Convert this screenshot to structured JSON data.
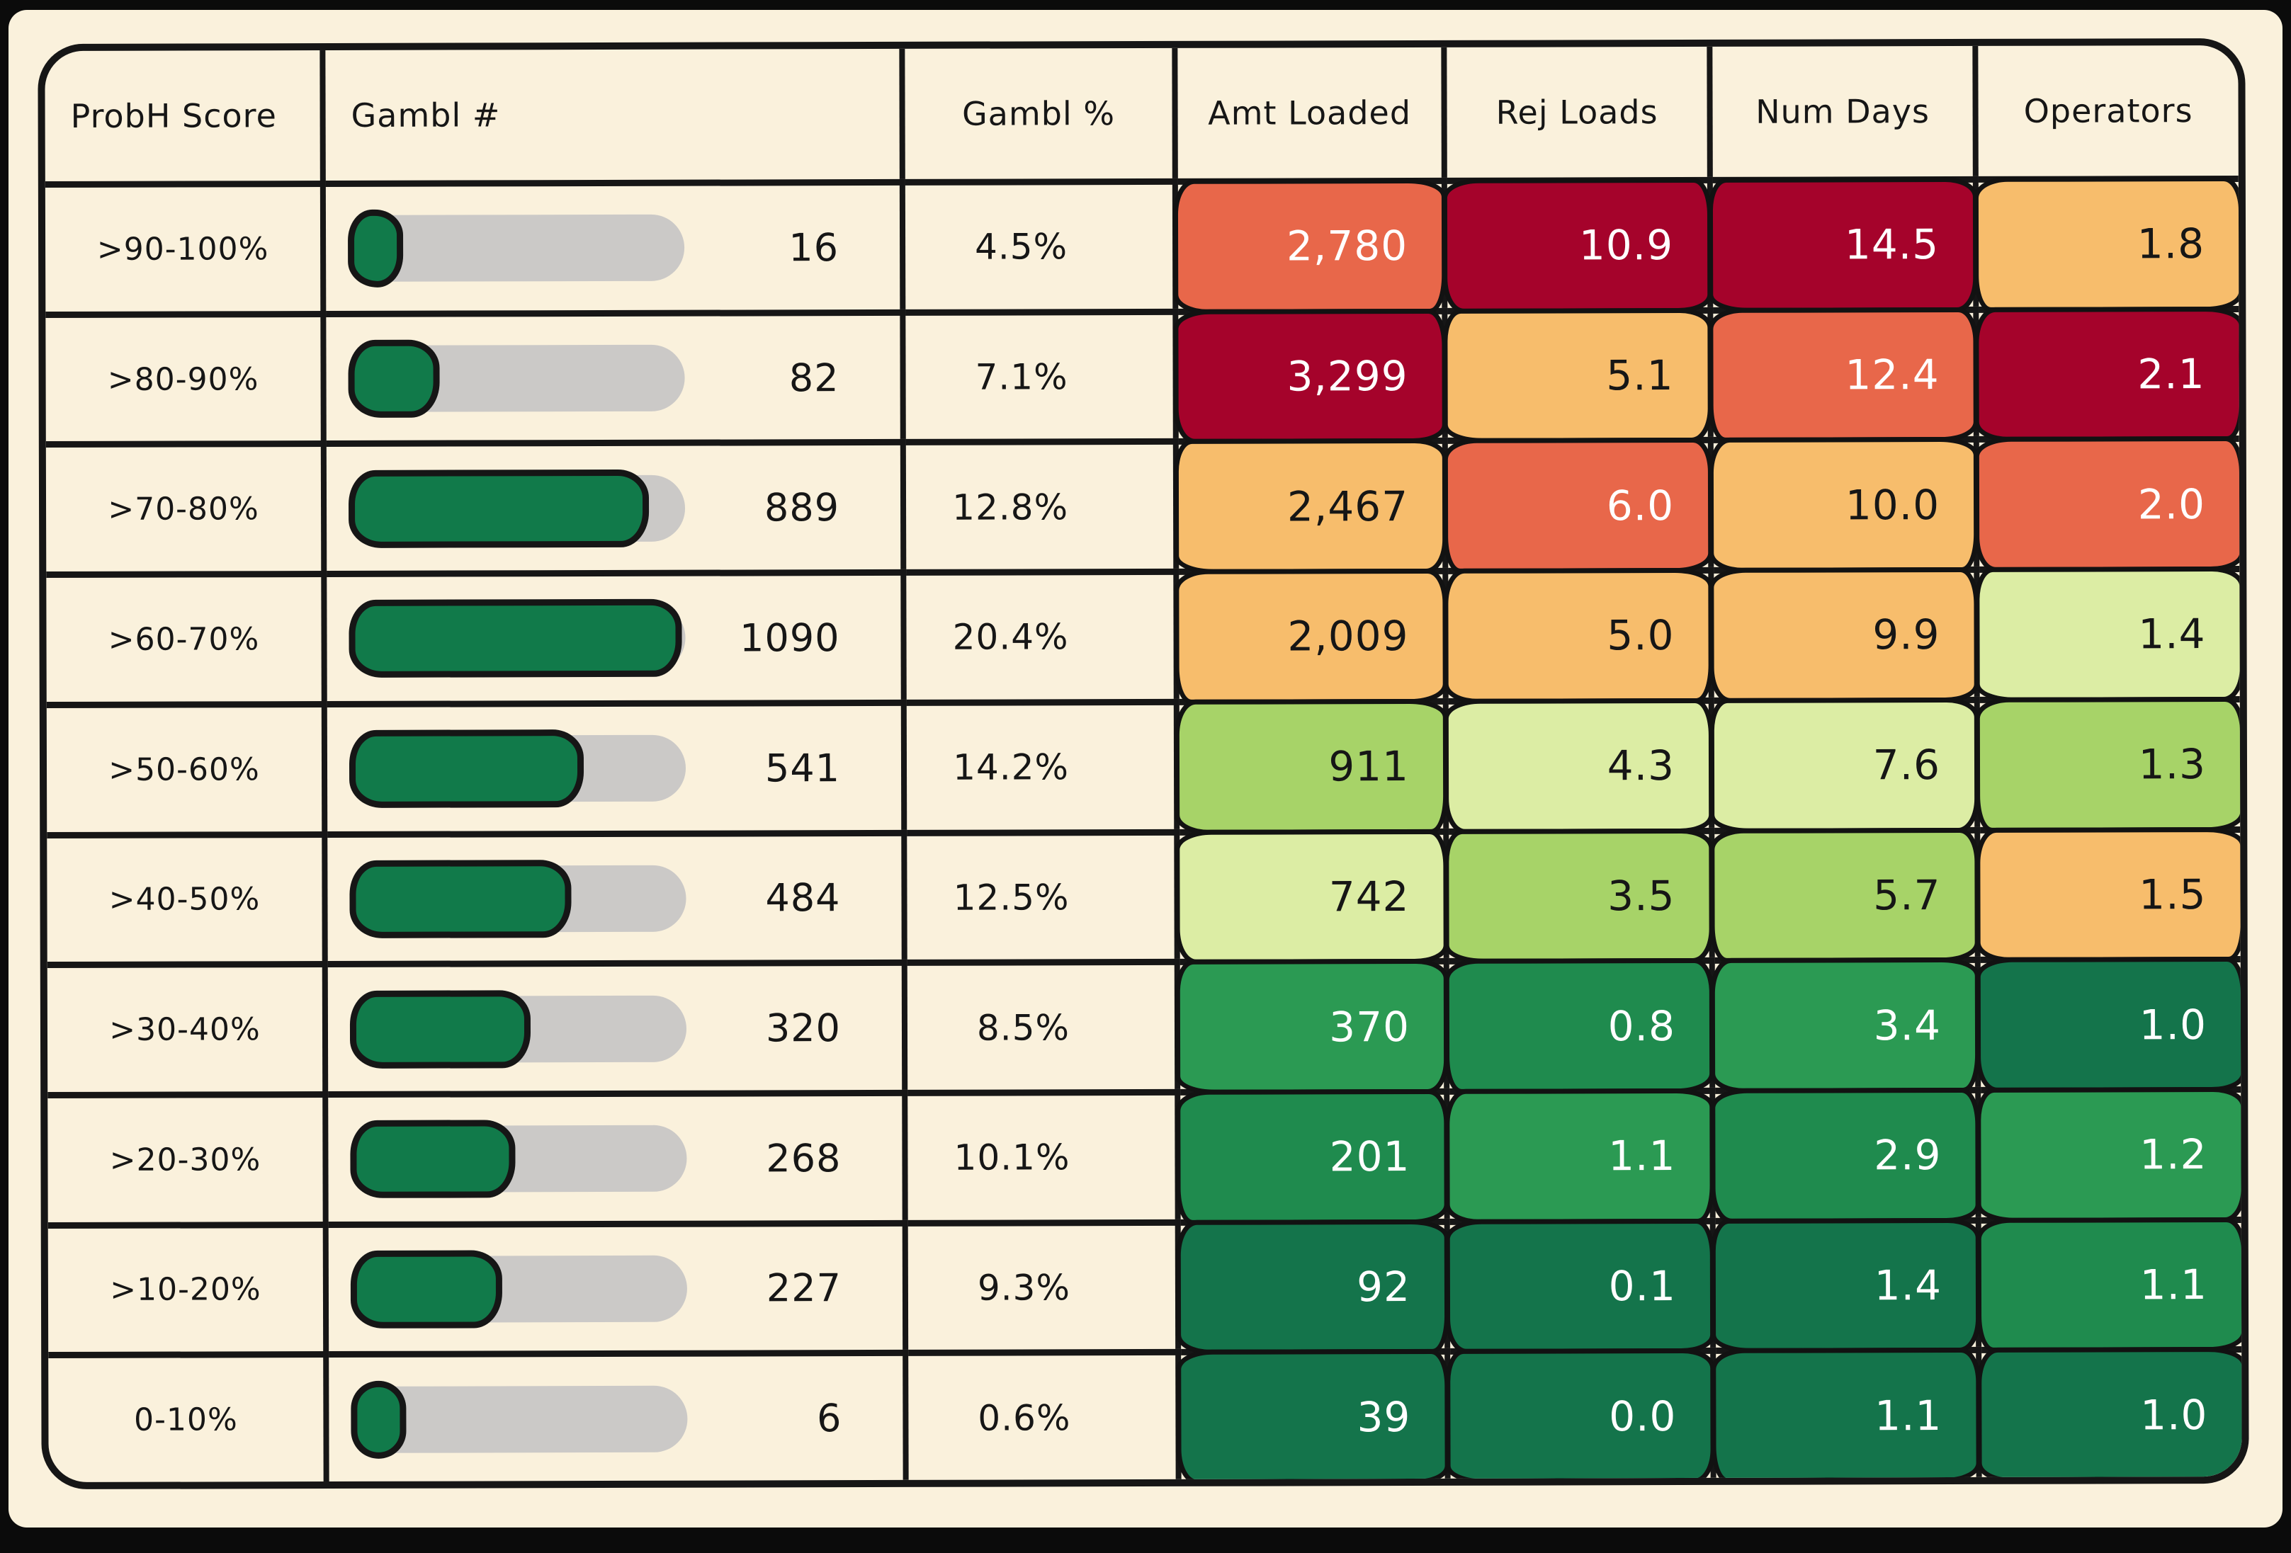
{
  "palette": {
    "cream": "#FAF1DC",
    "ink": "#161616",
    "white": "#FFFFFF",
    "darkred": "#A5032B",
    "orange": "#E8674A",
    "lightorange": "#F7BD6C",
    "palegreen": "#DCEDA4",
    "lightgreen": "#A7D368",
    "midgreen": "#2B9A53",
    "green": "#1F8B4E",
    "darkgreen": "#14744B",
    "bar_fill": "#117A4A",
    "bar_track": "#CBC9C7"
  },
  "columns": [
    {
      "label": "ProbH Score"
    },
    {
      "label": "Gambl #"
    },
    {
      "label": "Gambl %"
    },
    {
      "label": "Amt Loaded"
    },
    {
      "label": "Rej Loads"
    },
    {
      "label": "Num Days"
    },
    {
      "label": "Operators"
    }
  ],
  "bar": {
    "max": 1090
  },
  "rows": [
    {
      "prob": ">90-100%",
      "gambl_n": 16,
      "gambl_n_label": "16",
      "gambl_pct": "4.5%",
      "amt": {
        "v": "2,780",
        "bg": "orange",
        "fg": "white"
      },
      "rej": {
        "v": "10.9",
        "bg": "darkred",
        "fg": "white"
      },
      "days": {
        "v": "14.5",
        "bg": "darkred",
        "fg": "white"
      },
      "ops": {
        "v": "1.8",
        "bg": "lightorange",
        "fg": "ink"
      }
    },
    {
      "prob": ">80-90%",
      "gambl_n": 82,
      "gambl_n_label": "82",
      "gambl_pct": "7.1%",
      "amt": {
        "v": "3,299",
        "bg": "darkred",
        "fg": "white"
      },
      "rej": {
        "v": "5.1",
        "bg": "lightorange",
        "fg": "ink"
      },
      "days": {
        "v": "12.4",
        "bg": "orange",
        "fg": "white"
      },
      "ops": {
        "v": "2.1",
        "bg": "darkred",
        "fg": "white"
      }
    },
    {
      "prob": ">70-80%",
      "gambl_n": 889,
      "gambl_n_label": "889",
      "gambl_pct": "12.8%",
      "amt": {
        "v": "2,467",
        "bg": "lightorange",
        "fg": "ink"
      },
      "rej": {
        "v": "6.0",
        "bg": "orange",
        "fg": "white"
      },
      "days": {
        "v": "10.0",
        "bg": "lightorange",
        "fg": "ink"
      },
      "ops": {
        "v": "2.0",
        "bg": "orange",
        "fg": "white"
      }
    },
    {
      "prob": ">60-70%",
      "gambl_n": 1090,
      "gambl_n_label": "1090",
      "gambl_pct": "20.4%",
      "amt": {
        "v": "2,009",
        "bg": "lightorange",
        "fg": "ink"
      },
      "rej": {
        "v": "5.0",
        "bg": "lightorange",
        "fg": "ink"
      },
      "days": {
        "v": "9.9",
        "bg": "lightorange",
        "fg": "ink"
      },
      "ops": {
        "v": "1.4",
        "bg": "palegreen",
        "fg": "ink"
      }
    },
    {
      "prob": ">50-60%",
      "gambl_n": 541,
      "gambl_n_label": "541",
      "gambl_pct": "14.2%",
      "amt": {
        "v": "911",
        "bg": "lightgreen",
        "fg": "ink"
      },
      "rej": {
        "v": "4.3",
        "bg": "palegreen",
        "fg": "ink"
      },
      "days": {
        "v": "7.6",
        "bg": "palegreen",
        "fg": "ink"
      },
      "ops": {
        "v": "1.3",
        "bg": "lightgreen",
        "fg": "ink"
      }
    },
    {
      "prob": ">40-50%",
      "gambl_n": 484,
      "gambl_n_label": "484",
      "gambl_pct": "12.5%",
      "amt": {
        "v": "742",
        "bg": "palegreen",
        "fg": "ink"
      },
      "rej": {
        "v": "3.5",
        "bg": "lightgreen",
        "fg": "ink"
      },
      "days": {
        "v": "5.7",
        "bg": "lightgreen",
        "fg": "ink"
      },
      "ops": {
        "v": "1.5",
        "bg": "lightorange",
        "fg": "ink"
      }
    },
    {
      "prob": ">30-40%",
      "gambl_n": 320,
      "gambl_n_label": "320",
      "gambl_pct": "8.5%",
      "amt": {
        "v": "370",
        "bg": "midgreen",
        "fg": "white"
      },
      "rej": {
        "v": "0.8",
        "bg": "green",
        "fg": "white"
      },
      "days": {
        "v": "3.4",
        "bg": "midgreen",
        "fg": "white"
      },
      "ops": {
        "v": "1.0",
        "bg": "darkgreen",
        "fg": "white"
      }
    },
    {
      "prob": ">20-30%",
      "gambl_n": 268,
      "gambl_n_label": "268",
      "gambl_pct": "10.1%",
      "amt": {
        "v": "201",
        "bg": "green",
        "fg": "white"
      },
      "rej": {
        "v": "1.1",
        "bg": "midgreen",
        "fg": "white"
      },
      "days": {
        "v": "2.9",
        "bg": "green",
        "fg": "white"
      },
      "ops": {
        "v": "1.2",
        "bg": "midgreen",
        "fg": "white"
      }
    },
    {
      "prob": ">10-20%",
      "gambl_n": 227,
      "gambl_n_label": "227",
      "gambl_pct": "9.3%",
      "amt": {
        "v": "92",
        "bg": "darkgreen",
        "fg": "white"
      },
      "rej": {
        "v": "0.1",
        "bg": "darkgreen",
        "fg": "white"
      },
      "days": {
        "v": "1.4",
        "bg": "darkgreen",
        "fg": "white"
      },
      "ops": {
        "v": "1.1",
        "bg": "green",
        "fg": "white"
      }
    },
    {
      "prob": "0-10%",
      "gambl_n": 6,
      "gambl_n_label": "6",
      "gambl_pct": "0.6%",
      "amt": {
        "v": "39",
        "bg": "darkgreen",
        "fg": "white"
      },
      "rej": {
        "v": "0.0",
        "bg": "darkgreen",
        "fg": "white"
      },
      "days": {
        "v": "1.1",
        "bg": "darkgreen",
        "fg": "white"
      },
      "ops": {
        "v": "1.0",
        "bg": "darkgreen",
        "fg": "white"
      }
    }
  ],
  "chart_data": {
    "type": "table",
    "title": "",
    "columns": [
      "ProbH Score",
      "Gambl #",
      "Gambl %",
      "Amt Loaded",
      "Rej Loads",
      "Num Days",
      "Operators"
    ],
    "rows": [
      [
        ">90-100%",
        16,
        4.5,
        2780,
        10.9,
        14.5,
        1.8
      ],
      [
        ">80-90%",
        82,
        7.1,
        3299,
        5.1,
        12.4,
        2.1
      ],
      [
        ">70-80%",
        889,
        12.8,
        2467,
        6.0,
        10.0,
        2.0
      ],
      [
        ">60-70%",
        1090,
        20.4,
        2009,
        5.0,
        9.9,
        1.4
      ],
      [
        ">50-60%",
        541,
        14.2,
        911,
        4.3,
        7.6,
        1.3
      ],
      [
        ">40-50%",
        484,
        12.5,
        742,
        3.5,
        5.7,
        1.5
      ],
      [
        ">30-40%",
        320,
        8.5,
        370,
        0.8,
        3.4,
        1.0
      ],
      [
        ">20-30%",
        268,
        10.1,
        201,
        1.1,
        2.9,
        1.2
      ],
      [
        ">10-20%",
        227,
        9.3,
        92,
        0.1,
        1.4,
        1.1
      ],
      [
        "0-10%",
        6,
        0.6,
        39,
        0.0,
        1.1,
        1.0
      ]
    ],
    "notes": "Gambl # rendered as green progress bar scaled to max 1090; Amt Loaded, Rej Loads, Num Days, Operators cells heat-colored from dark red (high/bad) to dark green (low/good)."
  }
}
